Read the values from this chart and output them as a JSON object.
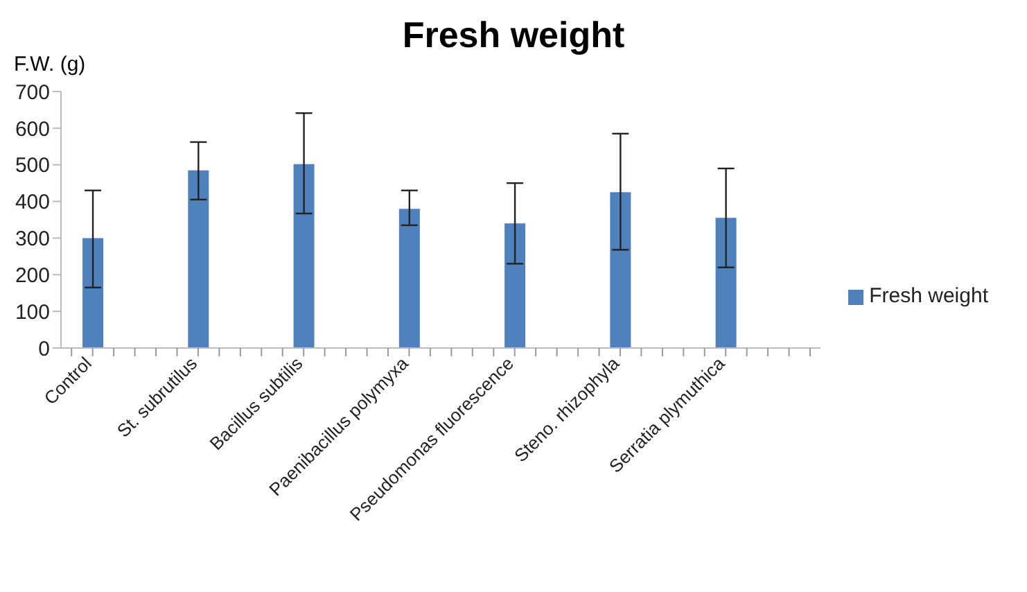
{
  "chart_data": {
    "type": "bar",
    "title": "Fresh weight",
    "ylabel": "F.W. (g)",
    "categories": [
      null,
      "Control",
      null,
      null,
      null,
      null,
      "St. subrutilus",
      null,
      null,
      null,
      null,
      "Bacillus subtilis",
      null,
      null,
      null,
      null,
      "Paenibacillus polymyxa",
      null,
      null,
      null,
      null,
      "Pseudomonas fluorescence",
      null,
      null,
      null,
      null,
      "Steno. rhizophyla",
      null,
      null,
      null,
      null,
      "Serratia plymuthica",
      null,
      null,
      null,
      null
    ],
    "series": [
      {
        "name": "Fresh weight",
        "color": "#4f81bd",
        "values": [
          null,
          300,
          null,
          null,
          null,
          null,
          485,
          null,
          null,
          null,
          null,
          502,
          null,
          null,
          null,
          null,
          380,
          null,
          null,
          null,
          null,
          340,
          null,
          null,
          null,
          null,
          425,
          null,
          null,
          null,
          null,
          355,
          null,
          null,
          null,
          null
        ],
        "errors": [
          null,
          [
            165,
            430
          ],
          null,
          null,
          null,
          null,
          [
            405,
            562
          ],
          null,
          null,
          null,
          null,
          [
            367,
            641
          ],
          null,
          null,
          null,
          null,
          [
            335,
            430
          ],
          null,
          null,
          null,
          null,
          [
            230,
            450
          ],
          null,
          null,
          null,
          null,
          [
            268,
            585
          ],
          null,
          null,
          null,
          null,
          [
            220,
            490
          ],
          null,
          null,
          null,
          null
        ]
      }
    ],
    "ylim": [
      0,
      700
    ],
    "yticks": [
      0,
      100,
      200,
      300,
      400,
      500,
      600,
      700
    ],
    "grid": false,
    "legend": "right"
  }
}
